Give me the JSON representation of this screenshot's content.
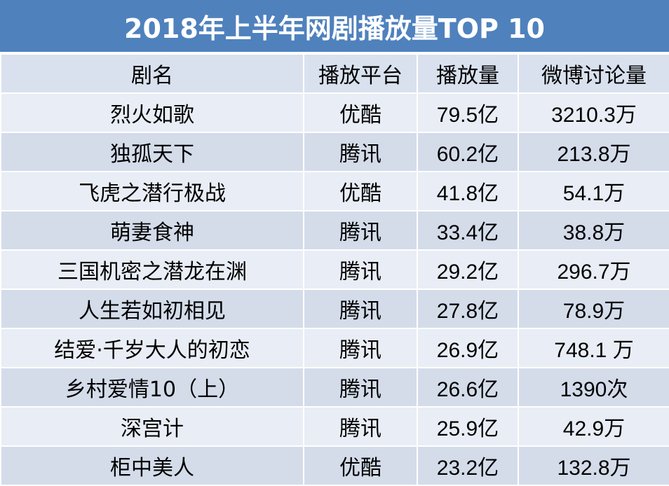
{
  "title": "2018年上半年网剧播放量TOP 10",
  "chart_data": {
    "type": "table",
    "headers": [
      "剧名",
      "播放平台",
      "播放量",
      "微博讨论量"
    ],
    "rows": [
      [
        "烈火如歌",
        "优酷",
        "79.5亿",
        "3210.3万"
      ],
      [
        "独孤天下",
        "腾讯",
        "60.2亿",
        "213.8万"
      ],
      [
        "飞虎之潜行极战",
        "优酷",
        "41.8亿",
        "54.1万"
      ],
      [
        "萌妻食神",
        "腾讯",
        "33.4亿",
        "38.8万"
      ],
      [
        "三国机密之潜龙在渊",
        "腾讯",
        "29.2亿",
        "296.7万"
      ],
      [
        "人生若如初相见",
        "腾讯",
        "27.8亿",
        "78.9万"
      ],
      [
        "结爱·千岁大人的初恋",
        "腾讯",
        "26.9亿",
        "748.1 万"
      ],
      [
        "乡村爱情10（上）",
        "腾讯",
        "26.6亿",
        "1390次"
      ],
      [
        "深宫计",
        "腾讯",
        "25.9亿",
        "42.9万"
      ],
      [
        "柜中美人",
        "优酷",
        "23.2亿",
        "132.8万"
      ]
    ]
  },
  "colors": {
    "title_bg": "#4f81bd",
    "header_bg": "#d9e1ee",
    "row_light": "#e9edf5",
    "row_dark": "#d4dcea"
  }
}
